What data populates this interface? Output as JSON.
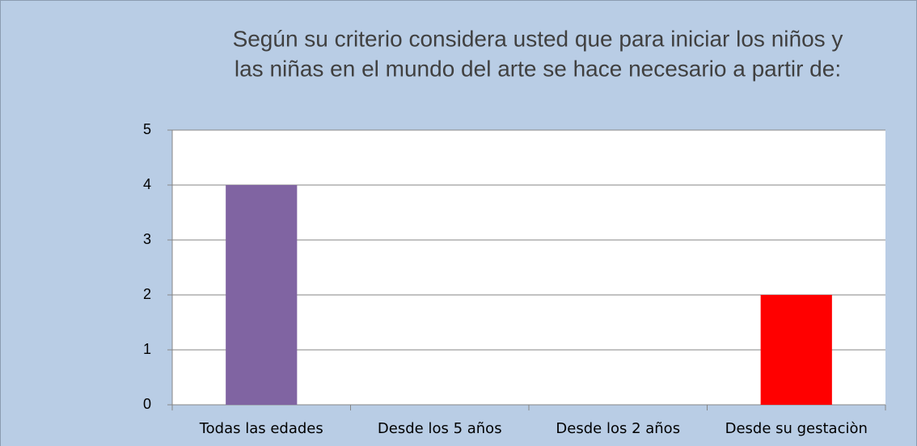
{
  "chart_data": {
    "type": "bar",
    "title": "Según su criterio considera usted que para iniciar los niños y las niñas en el mundo del arte se hace necesario a partir de:",
    "title_lines": [
      "Según su criterio considera usted que para iniciar los niños y",
      "las niñas en el mundo del arte se hace necesario a partir de:"
    ],
    "categories": [
      "Todas las edades",
      "Desde los 5 años",
      "Desde los 2 años",
      "Desde su gestaciòn"
    ],
    "values": [
      4,
      0,
      0,
      2
    ],
    "colors": [
      "#8064a2",
      null,
      null,
      "#ff0000"
    ],
    "ylim": [
      0,
      5
    ],
    "yticks": [
      0,
      1,
      2,
      3,
      4,
      5
    ],
    "grid": true
  }
}
